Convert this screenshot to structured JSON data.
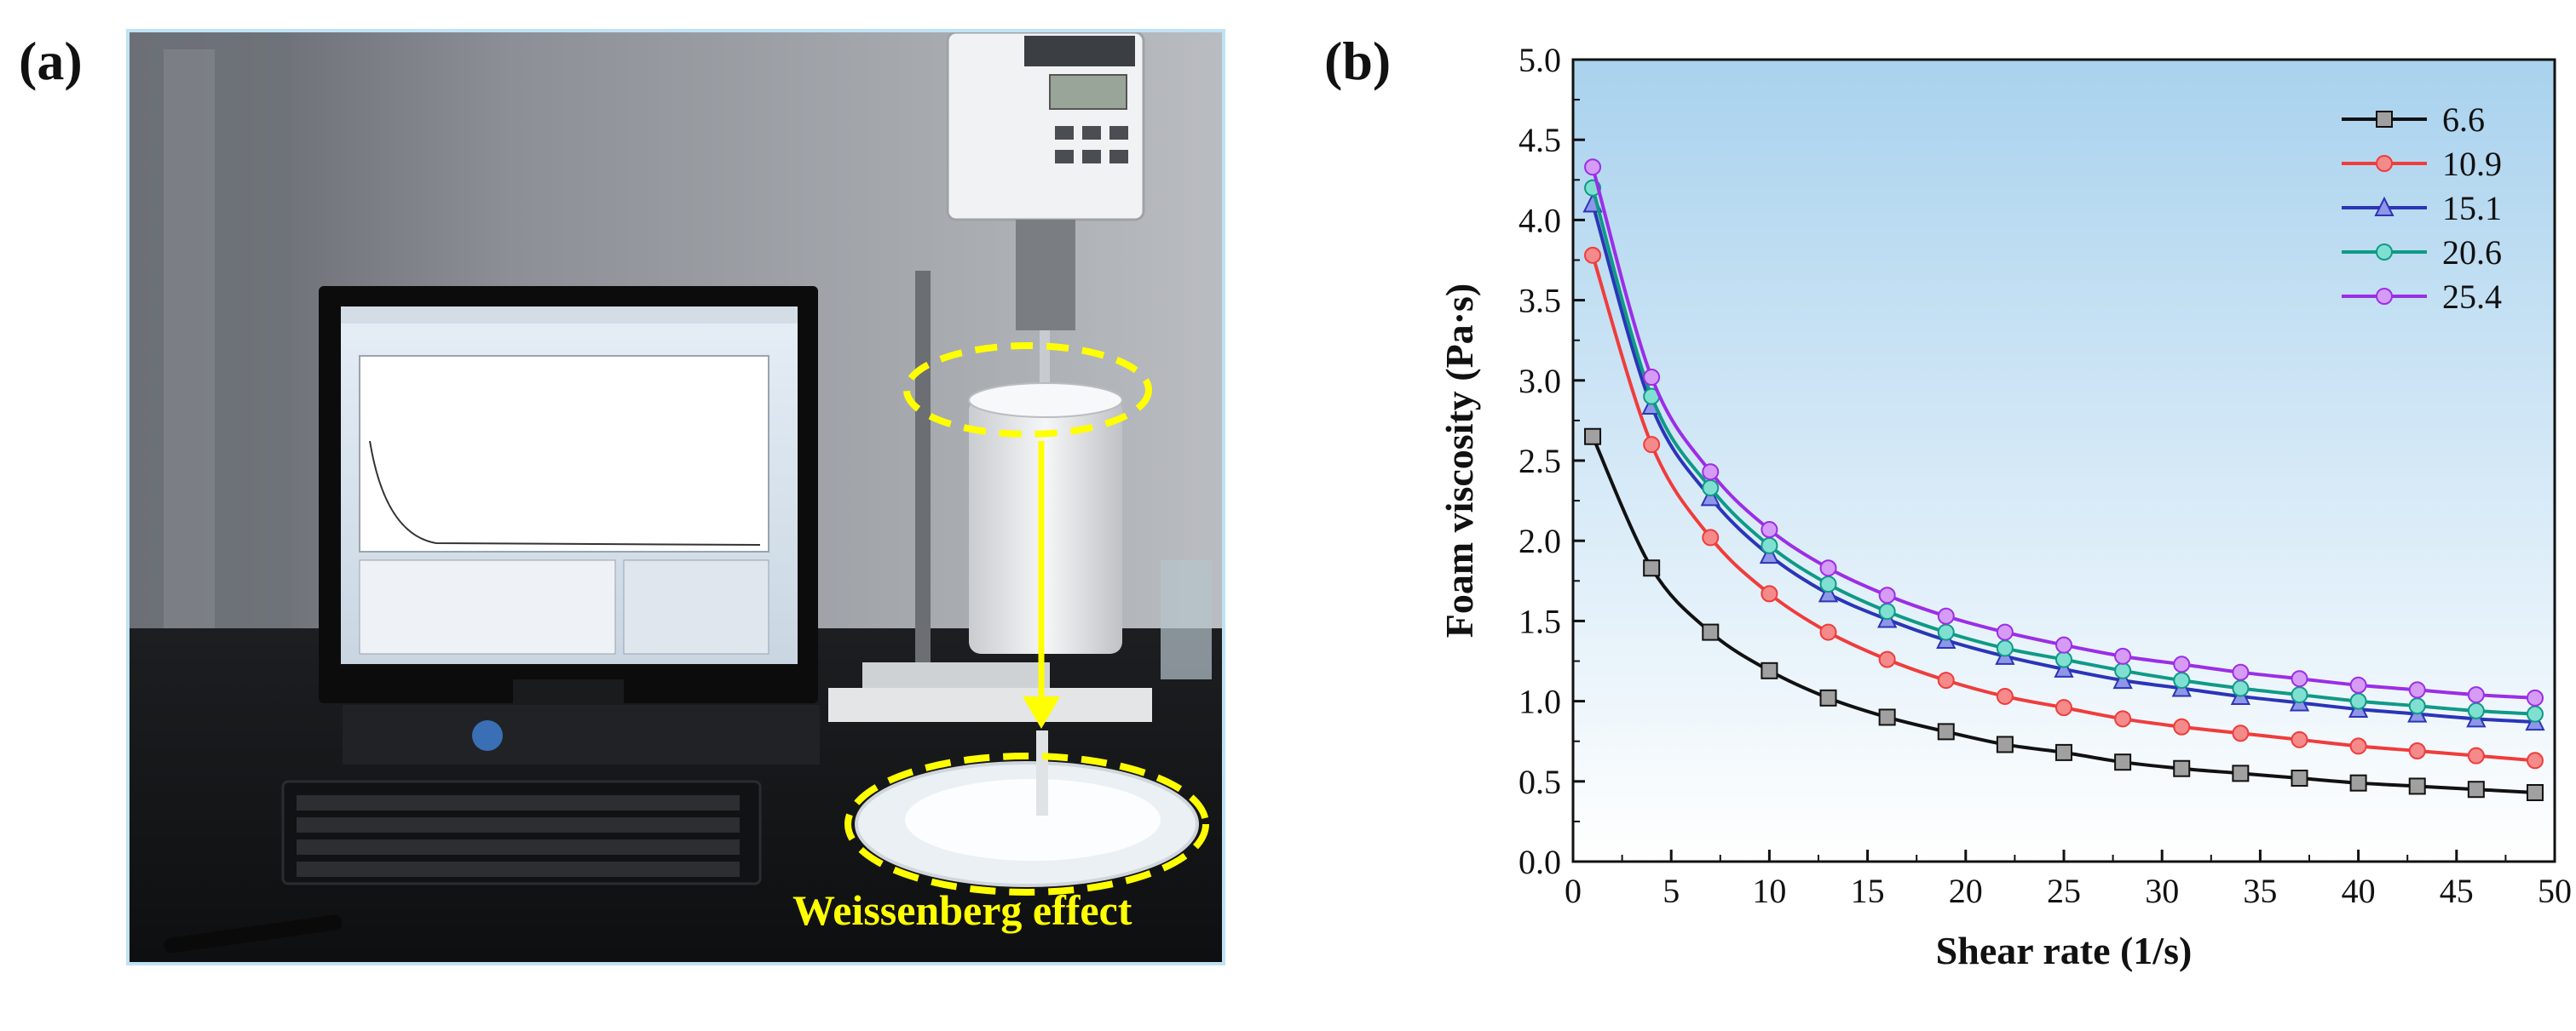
{
  "panels": {
    "a_label": "(a)",
    "b_label": "(b)"
  },
  "photo": {
    "annotation": "Weissenberg effect",
    "annotation_color": "#ffff00",
    "frame_color": "#bfe3f5"
  },
  "chart_data": {
    "type": "line",
    "title": "",
    "xlabel": "Shear rate (1/s)",
    "ylabel": "Foam viscosity (Pa·s)",
    "xlim": [
      0,
      50
    ],
    "ylim": [
      0,
      5.0
    ],
    "xticks": [
      "0",
      "5",
      "10",
      "15",
      "20",
      "25",
      "30",
      "35",
      "40",
      "45",
      "50"
    ],
    "yticks": [
      "0.0",
      "0.5",
      "1.0",
      "1.5",
      "2.0",
      "2.5",
      "3.0",
      "3.5",
      "4.0",
      "4.5",
      "5.0"
    ],
    "legend_position": "top-right",
    "background_gradient": [
      "#a9d2ee",
      "#ffffff"
    ],
    "x": [
      1,
      4,
      7,
      10,
      13,
      16,
      19,
      22,
      25,
      28,
      31,
      34,
      37,
      40,
      43,
      46,
      49
    ],
    "series": [
      {
        "name": "6.6",
        "color": "#111111",
        "marker": "square",
        "marker_fill": "#a0a0a0",
        "values": [
          2.65,
          1.83,
          1.43,
          1.19,
          1.02,
          0.9,
          0.81,
          0.73,
          0.68,
          0.62,
          0.58,
          0.55,
          0.52,
          0.49,
          0.47,
          0.45,
          0.43
        ]
      },
      {
        "name": "10.9",
        "color": "#f03c3c",
        "marker": "circle",
        "marker_fill": "#f58a8a",
        "values": [
          3.78,
          2.6,
          2.02,
          1.67,
          1.43,
          1.26,
          1.13,
          1.03,
          0.96,
          0.89,
          0.84,
          0.8,
          0.76,
          0.72,
          0.69,
          0.66,
          0.63
        ]
      },
      {
        "name": "15.1",
        "color": "#2a35b8",
        "marker": "triangle",
        "marker_fill": "#8f96e8",
        "values": [
          4.1,
          2.84,
          2.27,
          1.91,
          1.67,
          1.51,
          1.38,
          1.28,
          1.2,
          1.13,
          1.08,
          1.03,
          0.99,
          0.95,
          0.92,
          0.89,
          0.87
        ]
      },
      {
        "name": "20.6",
        "color": "#0f9a86",
        "marker": "circle",
        "marker_fill": "#7fe0d2",
        "values": [
          4.2,
          2.9,
          2.33,
          1.97,
          1.73,
          1.56,
          1.43,
          1.33,
          1.26,
          1.19,
          1.13,
          1.08,
          1.04,
          1.0,
          0.97,
          0.94,
          0.92
        ]
      },
      {
        "name": "25.4",
        "color": "#9b2ee6",
        "marker": "circle",
        "marker_fill": "#d59bf5",
        "values": [
          4.33,
          3.02,
          2.43,
          2.07,
          1.83,
          1.66,
          1.53,
          1.43,
          1.35,
          1.28,
          1.23,
          1.18,
          1.14,
          1.1,
          1.07,
          1.04,
          1.02
        ]
      }
    ]
  }
}
